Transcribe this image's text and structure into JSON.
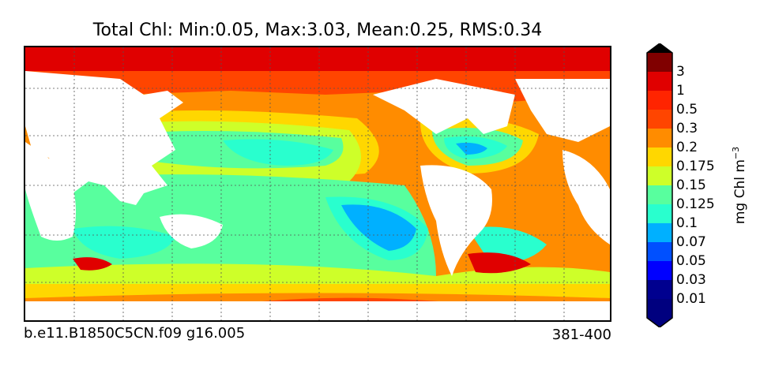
{
  "title": "Total Chl: Min:0.05, Max:3.03, Mean:0.25, RMS:0.34",
  "footer": {
    "case": "b.e11.B1850C5CN.f09 g16.005",
    "years": "381-400"
  },
  "colorbar": {
    "units_base": "mg Chl m",
    "units_exp": "−3",
    "levels": [
      {
        "label": "",
        "color": "#00007f"
      },
      {
        "label": "0.01",
        "color": "#00008f"
      },
      {
        "label": "0.03",
        "color": "#0000ff"
      },
      {
        "label": "0.05",
        "color": "#0050ff"
      },
      {
        "label": "0.07",
        "color": "#00b0ff"
      },
      {
        "label": "0.1",
        "color": "#29ffce"
      },
      {
        "label": "0.125",
        "color": "#58ff9e"
      },
      {
        "label": "0.15",
        "color": "#ceff29"
      },
      {
        "label": "0.175",
        "color": "#ffd700"
      },
      {
        "label": "0.2",
        "color": "#ff8c00"
      },
      {
        "label": "0.3",
        "color": "#ff4500"
      },
      {
        "label": "0.5",
        "color": "#ff2400"
      },
      {
        "label": "1",
        "color": "#e00000"
      },
      {
        "label": "3",
        "color": "#800000"
      }
    ],
    "under_color": "#00007f",
    "over_color": "#000000"
  },
  "map": {
    "land_color": "#ffffff",
    "grid": true
  }
}
